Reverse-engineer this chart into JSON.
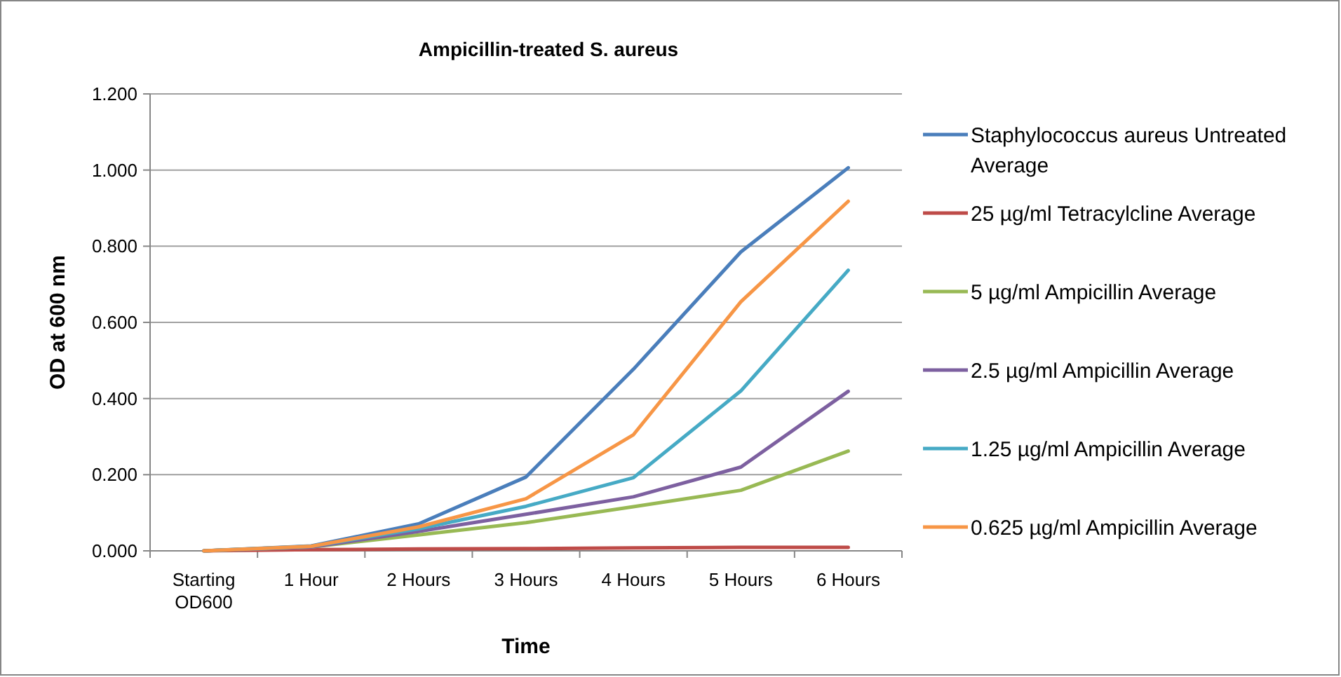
{
  "chart_data": {
    "type": "line",
    "title": "Ampicillin-treated S. aureus",
    "xlabel": "Time",
    "ylabel": "OD at 600 nm",
    "categories": [
      "Starting OD600",
      "1 Hour",
      "2 Hours",
      "3 Hours",
      "4 Hours",
      "5 Hours",
      "6 Hours"
    ],
    "series": [
      {
        "name": "Staphylococcus aureus Untreated Average",
        "color": "#4a7ebb",
        "values": [
          0,
          0.013,
          0.071,
          0.194,
          0.477,
          0.785,
          1.006
        ]
      },
      {
        "name": "25 µg/ml Tetracylcline Average",
        "color": "#be4b48",
        "values": [
          0,
          0.003,
          0.005,
          0.006,
          0.008,
          0.009,
          0.009
        ]
      },
      {
        "name": "5 µg/ml Ampicillin Average",
        "color": "#98b954",
        "values": [
          0,
          0.01,
          0.042,
          0.074,
          0.116,
          0.159,
          0.262
        ]
      },
      {
        "name": "2.5 µg/ml Ampicillin Average",
        "color": "#7d60a0",
        "values": [
          0,
          0.01,
          0.051,
          0.096,
          0.142,
          0.22,
          0.419
        ]
      },
      {
        "name": "1.25 µg/ml Ampicillin Average",
        "color": "#46aac5",
        "values": [
          0,
          0.012,
          0.058,
          0.117,
          0.192,
          0.42,
          0.737
        ]
      },
      {
        "name": "0.625 µg/ml Ampicillin Average",
        "color": "#f79646",
        "values": [
          0,
          0.012,
          0.063,
          0.137,
          0.305,
          0.654,
          0.918
        ]
      }
    ],
    "ylim": [
      0,
      1.2
    ],
    "yticks": [
      {
        "value": 0,
        "label": "0.000"
      },
      {
        "value": 0.2,
        "label": "0.200"
      },
      {
        "value": 0.4,
        "label": "0.400"
      },
      {
        "value": 0.6,
        "label": "0.600"
      },
      {
        "value": 0.8,
        "label": "0.800"
      },
      {
        "value": 1,
        "label": "1.000"
      },
      {
        "value": 1.2,
        "label": "1.200"
      }
    ],
    "grid": "y",
    "legend": "right",
    "marker": "none",
    "line_style": "solid"
  }
}
